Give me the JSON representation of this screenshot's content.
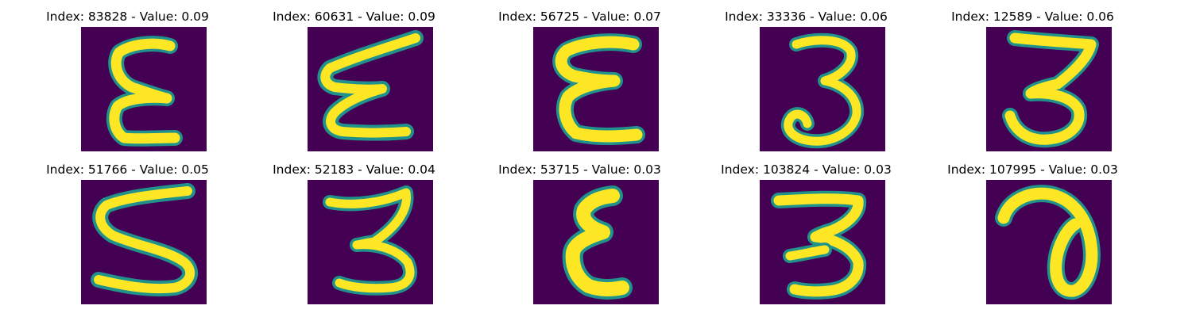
{
  "figure": {
    "panels": [
      {
        "title": "Index: 83828 - Value: 0.09",
        "glyph": "epsilon-a"
      },
      {
        "title": "Index: 60631 - Value: 0.09",
        "glyph": "epsilon-slanted"
      },
      {
        "title": "Index: 56725 - Value: 0.07",
        "glyph": "epsilon-b"
      },
      {
        "title": "Index: 33336 - Value: 0.06",
        "glyph": "three-a"
      },
      {
        "title": "Index: 12589 - Value: 0.06",
        "glyph": "three-b"
      },
      {
        "title": "Index: 51766 - Value: 0.05",
        "glyph": "five"
      },
      {
        "title": "Index: 52183 - Value: 0.04",
        "glyph": "three-c"
      },
      {
        "title": "Index: 53715 - Value: 0.03",
        "glyph": "epsilon-c"
      },
      {
        "title": "Index: 103824 - Value: 0.03",
        "glyph": "three-d"
      },
      {
        "title": "Index: 107995 - Value: 0.03",
        "glyph": "loop-a"
      }
    ],
    "colors": {
      "background": "#440154",
      "stroke_outer": "#21918c",
      "stroke_inner": "#fde725",
      "title": "#000000"
    }
  }
}
